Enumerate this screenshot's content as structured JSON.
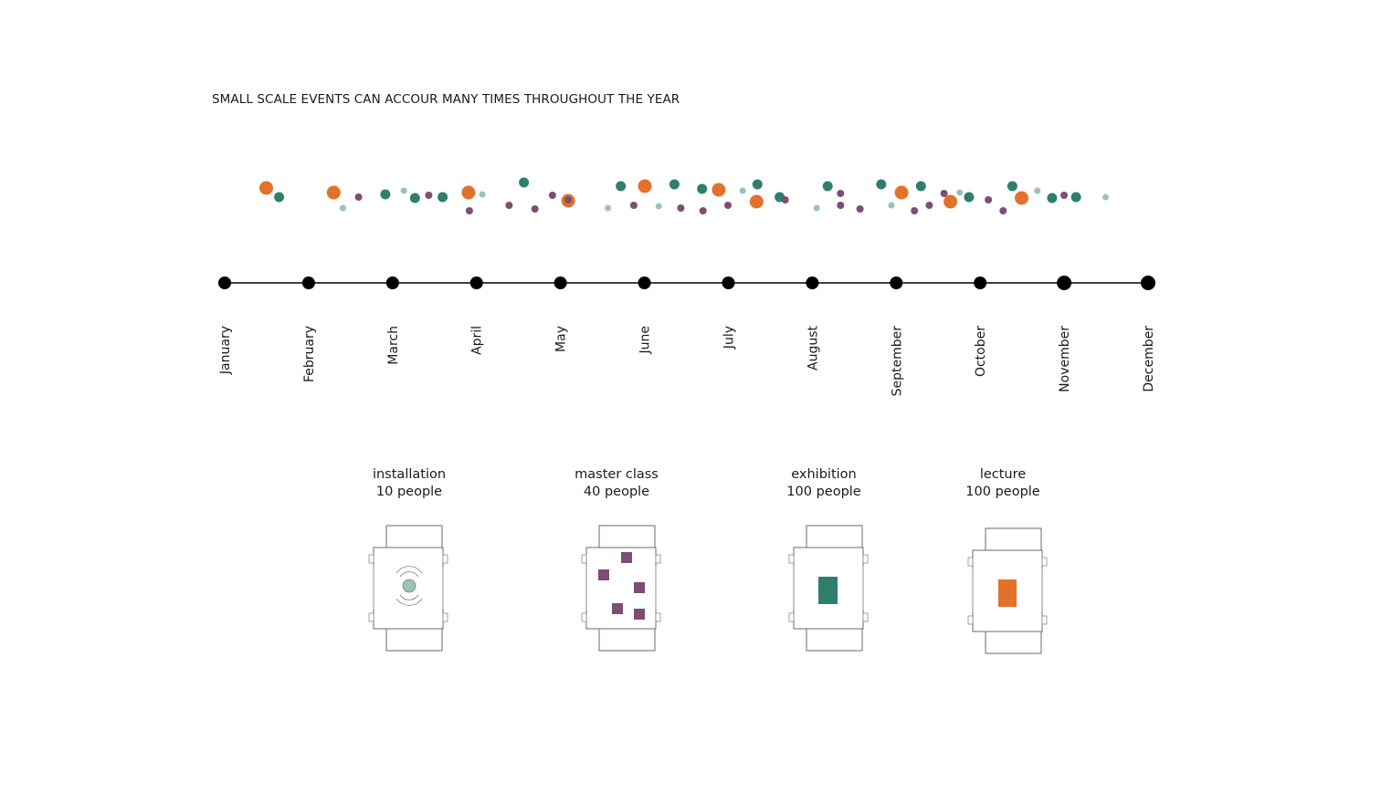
{
  "title": "SMALL SCALE EVENTS CAN ACCOUR MANY  TIMES  THROUGHOUT THE  YEAR",
  "colors": {
    "background": "#ffffff",
    "timeline": "#000000",
    "orange": "#e2712a",
    "teal": "#2f7e6e",
    "mint": "#9cc2b4",
    "purple": "#7e4d72"
  },
  "timeline": {
    "months": [
      "January",
      "February",
      "March",
      "April",
      "May",
      "June",
      "July",
      "August",
      "September",
      "October",
      "November",
      "December"
    ]
  },
  "events": [
    {
      "type": "lecture",
      "position": 0.045
    },
    {
      "type": "exhibition",
      "position": 0.059
    },
    {
      "type": "lecture",
      "position": 0.118
    },
    {
      "type": "installation",
      "position": 0.128
    },
    {
      "type": "master_class",
      "position": 0.145
    },
    {
      "type": "exhibition",
      "position": 0.174
    },
    {
      "type": "installation",
      "position": 0.194
    },
    {
      "type": "exhibition",
      "position": 0.206
    },
    {
      "type": "master_class",
      "position": 0.221
    },
    {
      "type": "exhibition",
      "position": 0.236
    },
    {
      "type": "lecture",
      "position": 0.264
    },
    {
      "type": "master_class",
      "position": 0.265
    },
    {
      "type": "installation",
      "position": 0.279
    },
    {
      "type": "master_class",
      "position": 0.308
    },
    {
      "type": "exhibition",
      "position": 0.324
    },
    {
      "type": "master_class",
      "position": 0.336
    },
    {
      "type": "master_class",
      "position": 0.355
    },
    {
      "type": "lecture",
      "position": 0.372
    },
    {
      "type": "master_class",
      "position": 0.372
    },
    {
      "type": "installation",
      "position": 0.415
    },
    {
      "type": "exhibition",
      "position": 0.429
    },
    {
      "type": "master_class",
      "position": 0.443
    },
    {
      "type": "lecture",
      "position": 0.455
    },
    {
      "type": "installation",
      "position": 0.47
    },
    {
      "type": "exhibition",
      "position": 0.487
    },
    {
      "type": "master_class",
      "position": 0.494
    },
    {
      "type": "exhibition",
      "position": 0.517
    },
    {
      "type": "master_class",
      "position": 0.518
    },
    {
      "type": "lecture",
      "position": 0.535
    },
    {
      "type": "master_class",
      "position": 0.545
    },
    {
      "type": "installation",
      "position": 0.561
    },
    {
      "type": "lecture",
      "position": 0.576
    },
    {
      "type": "exhibition",
      "position": 0.577
    },
    {
      "type": "exhibition",
      "position": 0.601
    },
    {
      "type": "master_class",
      "position": 0.607
    },
    {
      "type": "installation",
      "position": 0.641
    },
    {
      "type": "exhibition",
      "position": 0.653
    },
    {
      "type": "master_class",
      "position": 0.667
    },
    {
      "type": "master_class",
      "position": 0.667
    },
    {
      "type": "master_class",
      "position": 0.688
    },
    {
      "type": "exhibition",
      "position": 0.711
    },
    {
      "type": "installation",
      "position": 0.722
    },
    {
      "type": "lecture",
      "position": 0.733
    },
    {
      "type": "master_class",
      "position": 0.747
    },
    {
      "type": "exhibition",
      "position": 0.754
    },
    {
      "type": "master_class",
      "position": 0.763
    },
    {
      "type": "master_class",
      "position": 0.779
    },
    {
      "type": "lecture",
      "position": 0.786
    },
    {
      "type": "installation",
      "position": 0.796
    },
    {
      "type": "exhibition",
      "position": 0.806
    },
    {
      "type": "master_class",
      "position": 0.827
    },
    {
      "type": "master_class",
      "position": 0.843
    },
    {
      "type": "exhibition",
      "position": 0.853
    },
    {
      "type": "lecture",
      "position": 0.863
    },
    {
      "type": "installation",
      "position": 0.88
    },
    {
      "type": "exhibition",
      "position": 0.896
    },
    {
      "type": "master_class",
      "position": 0.909
    },
    {
      "type": "exhibition",
      "position": 0.922
    },
    {
      "type": "installation",
      "position": 0.954
    }
  ],
  "legend": [
    {
      "id": "installation",
      "name": "installation",
      "people": "10 people"
    },
    {
      "id": "master_class",
      "name": "master class",
      "people": "40 people"
    },
    {
      "id": "exhibition",
      "name": "exhibition",
      "people": "100 people"
    },
    {
      "id": "lecture",
      "name": "lecture",
      "people": "100 people"
    }
  ]
}
